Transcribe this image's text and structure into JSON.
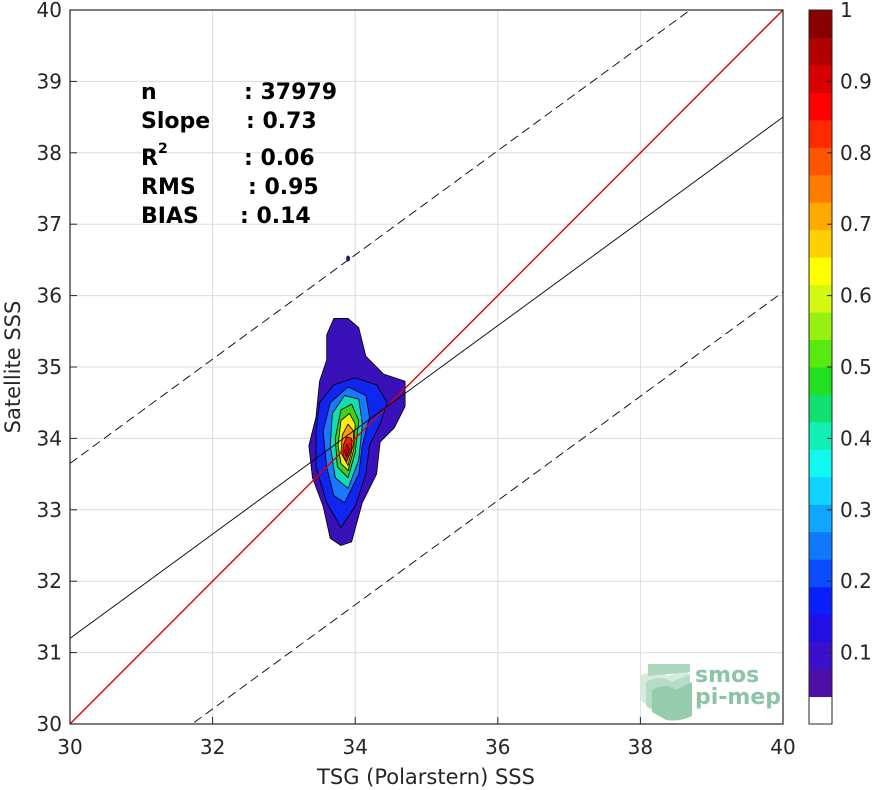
{
  "chart_data": {
    "type": "heatmap",
    "xlabel": "TSG (Polarstern) SSS",
    "ylabel": "Satellite SSS",
    "xlim": [
      30,
      40
    ],
    "ylim": [
      30,
      40
    ],
    "xticks": [
      "30",
      "32",
      "34",
      "36",
      "38",
      "40"
    ],
    "yticks": [
      "30",
      "31",
      "32",
      "33",
      "34",
      "35",
      "36",
      "37",
      "38",
      "39",
      "40"
    ],
    "grid": true,
    "stats": {
      "n_label": "n",
      "n_value": ": 37979",
      "slope_label": "Slope",
      "slope_value": ": 0.73",
      "r2_label": "R",
      "r2_sup": "2",
      "r2_value": ": 0.06",
      "rms_label": "RMS",
      "rms_value": ": 0.95",
      "bias_label": "BIAS",
      "bias_value": ": 0.14"
    },
    "identity_line": {
      "slope": 1,
      "intercept": 0,
      "color": "#e00000"
    },
    "regression_line": {
      "slope": 0.73,
      "intercept": 9.3,
      "color": "#000000"
    },
    "confidence_band": {
      "offset": 2.45,
      "style": "dashed"
    },
    "density_contours": {
      "peak_center": [
        33.9,
        33.85
      ],
      "levels": [
        {
          "level": 0.05,
          "color": "#3a10b8",
          "points": [
            [
              33.8,
              32.5
            ],
            [
              33.95,
              32.55
            ],
            [
              34.1,
              33.1
            ],
            [
              34.3,
              33.5
            ],
            [
              34.35,
              33.95
            ],
            [
              34.55,
              34.15
            ],
            [
              34.7,
              34.45
            ],
            [
              34.7,
              34.8
            ],
            [
              34.4,
              34.9
            ],
            [
              34.15,
              35.15
            ],
            [
              34.05,
              35.55
            ],
            [
              33.9,
              35.68
            ],
            [
              33.7,
              35.68
            ],
            [
              33.6,
              35.45
            ],
            [
              33.6,
              35.1
            ],
            [
              33.5,
              34.8
            ],
            [
              33.45,
              34.3
            ],
            [
              33.35,
              33.9
            ],
            [
              33.4,
              33.45
            ],
            [
              33.55,
              33.05
            ],
            [
              33.65,
              32.6
            ]
          ]
        },
        {
          "level": 0.15,
          "color": "#1025f0",
          "points": [
            [
              33.8,
              32.75
            ],
            [
              34.0,
              33.05
            ],
            [
              34.15,
              33.5
            ],
            [
              34.2,
              33.9
            ],
            [
              34.35,
              34.2
            ],
            [
              34.45,
              34.5
            ],
            [
              34.3,
              34.75
            ],
            [
              34.0,
              34.85
            ],
            [
              33.7,
              34.75
            ],
            [
              33.5,
              34.5
            ],
            [
              33.45,
              34.1
            ],
            [
              33.45,
              33.6
            ],
            [
              33.6,
              33.1
            ]
          ]
        },
        {
          "level": 0.3,
          "color": "#1a78ff",
          "points": [
            [
              33.85,
              33.1
            ],
            [
              34.05,
              33.5
            ],
            [
              34.1,
              33.9
            ],
            [
              34.2,
              34.3
            ],
            [
              34.15,
              34.6
            ],
            [
              33.9,
              34.72
            ],
            [
              33.65,
              34.5
            ],
            [
              33.55,
              34.1
            ],
            [
              33.6,
              33.6
            ],
            [
              33.7,
              33.2
            ]
          ]
        },
        {
          "level": 0.45,
          "color": "#12dcb0",
          "points": [
            [
              33.9,
              33.3
            ],
            [
              34.05,
              33.7
            ],
            [
              34.1,
              34.2
            ],
            [
              34.05,
              34.55
            ],
            [
              33.85,
              34.6
            ],
            [
              33.68,
              34.35
            ],
            [
              33.65,
              33.9
            ],
            [
              33.72,
              33.45
            ]
          ]
        },
        {
          "level": 0.55,
          "color": "#3ccf1e",
          "points": [
            [
              33.9,
              33.45
            ],
            [
              34.0,
              33.8
            ],
            [
              34.05,
              34.25
            ],
            [
              33.95,
              34.48
            ],
            [
              33.8,
              34.4
            ],
            [
              33.72,
              34.0
            ],
            [
              33.75,
              33.6
            ]
          ]
        },
        {
          "level": 0.65,
          "color": "#f0f018",
          "points": [
            [
              33.9,
              33.55
            ],
            [
              33.98,
              33.85
            ],
            [
              34.0,
              34.2
            ],
            [
              33.92,
              34.35
            ],
            [
              33.8,
              34.25
            ],
            [
              33.76,
              33.9
            ],
            [
              33.8,
              33.65
            ]
          ]
        },
        {
          "level": 0.75,
          "color": "#ff9a00",
          "points": [
            [
              33.9,
              33.62
            ],
            [
              33.97,
              33.9
            ],
            [
              33.98,
              34.1
            ],
            [
              33.9,
              34.2
            ],
            [
              33.82,
              34.05
            ],
            [
              33.8,
              33.8
            ]
          ]
        },
        {
          "level": 0.88,
          "color": "#f02400",
          "points": [
            [
              33.88,
              33.68
            ],
            [
              33.95,
              33.85
            ],
            [
              33.95,
              34.0
            ],
            [
              33.88,
              34.02
            ],
            [
              33.83,
              33.9
            ],
            [
              33.83,
              33.75
            ]
          ]
        },
        {
          "level": 0.97,
          "color": "#c80000",
          "points": [
            [
              33.88,
              33.74
            ],
            [
              33.92,
              33.85
            ],
            [
              33.88,
              33.92
            ],
            [
              33.85,
              33.82
            ]
          ]
        }
      ],
      "outlier": [
        33.9,
        36.52
      ]
    },
    "colorbar": {
      "ticks": [
        "0.1",
        "0.2",
        "0.3",
        "0.4",
        "0.5",
        "0.6",
        "0.7",
        "0.8",
        "0.9",
        "1"
      ],
      "colors": [
        "#ffffff",
        "#4d0fa8",
        "#3a10c8",
        "#2010e6",
        "#0a1eff",
        "#0a4cff",
        "#1078ff",
        "#10a6ff",
        "#10d4ff",
        "#10f8f0",
        "#10f0b4",
        "#10e070",
        "#20e020",
        "#58ea10",
        "#96f010",
        "#d4f810",
        "#ffff00",
        "#ffd000",
        "#ffa800",
        "#ff7c00",
        "#ff5400",
        "#ff2a00",
        "#ff0000",
        "#d80000",
        "#b00000",
        "#880000"
      ]
    }
  },
  "logo": {
    "line1": "smos",
    "line2": "pi-mep"
  }
}
